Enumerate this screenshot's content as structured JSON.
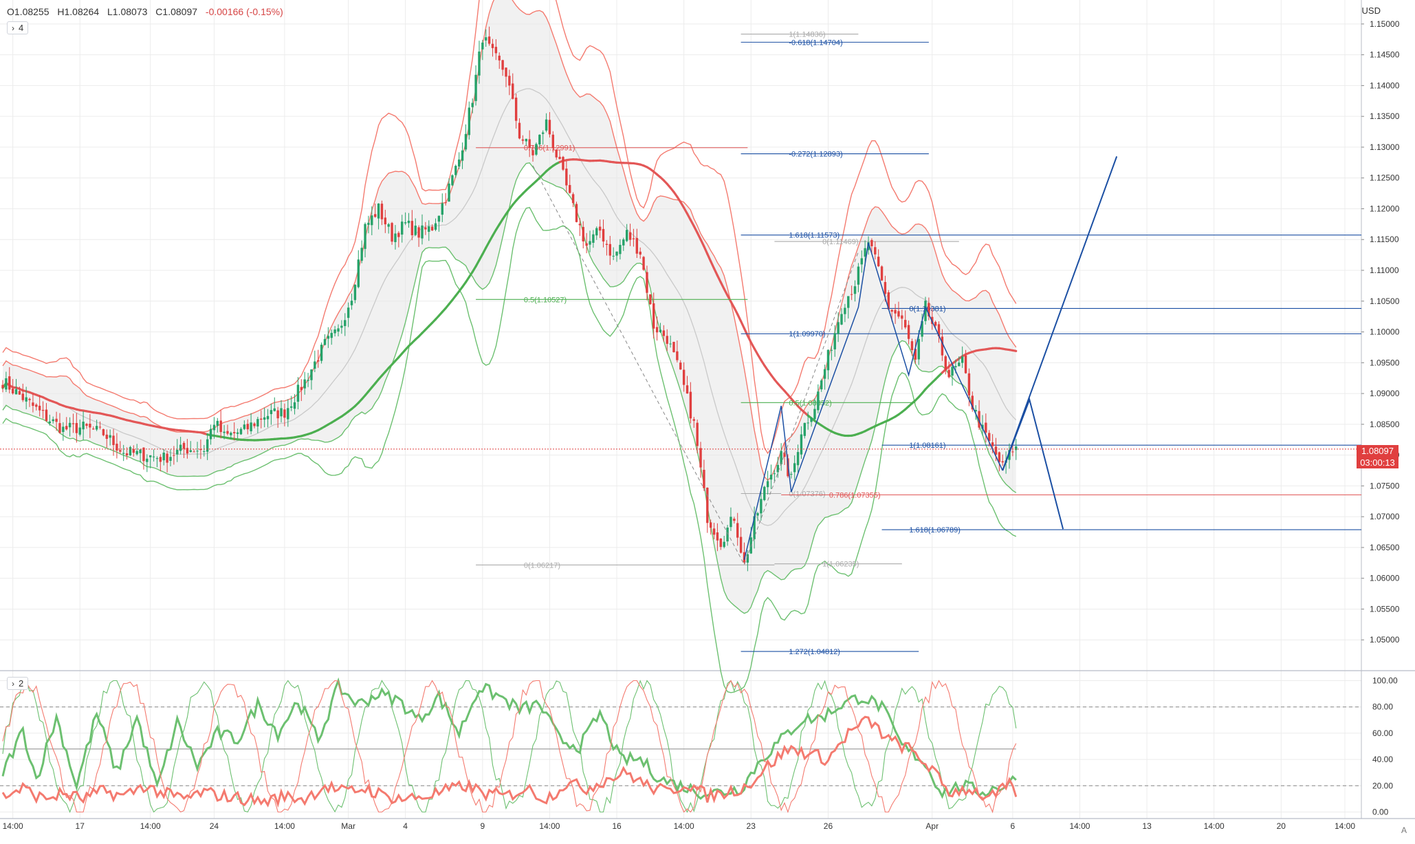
{
  "legend": {
    "open": "O1.08255",
    "high": "H1.08264",
    "low": "L1.08073",
    "close": "C1.08097",
    "change": "-0.00166 (-0.15%)"
  },
  "main_pane_toggle": "4",
  "osc_pane_toggle": "2",
  "currency": "USD",
  "last_price": "1.08097",
  "countdown": "03:00:13",
  "colors": {
    "up": "#26a269",
    "down": "#e03f3f",
    "upper_band": "#f47a6f",
    "lower_band": "#6cc070",
    "ma": "#e35757",
    "fib_blue": "#1b4fa3",
    "fib_red": "#e05050",
    "fib_green": "#4caf50",
    "grid": "#ececec"
  },
  "chart_data": [
    {
      "type": "candlestick",
      "symbol_unit": "USD",
      "ylim": [
        1.045,
        1.153
      ],
      "y_ticks": [
        "1.15000",
        "1.14500",
        "1.14000",
        "1.13500",
        "1.13000",
        "1.12500",
        "1.12000",
        "1.11500",
        "1.11000",
        "1.10500",
        "1.10000",
        "1.09500",
        "1.09000",
        "1.08500",
        "1.08000",
        "1.07500",
        "1.07000",
        "1.06500",
        "1.06000",
        "1.05500",
        "1.05000"
      ],
      "x_ticks": [
        {
          "label": "14:00",
          "bar": 3
        },
        {
          "label": "17",
          "bar": 23
        },
        {
          "label": "14:00",
          "bar": 44
        },
        {
          "label": "24",
          "bar": 63
        },
        {
          "label": "14:00",
          "bar": 84
        },
        {
          "label": "Mar",
          "bar": 103
        },
        {
          "label": "4",
          "bar": 120
        },
        {
          "label": "9",
          "bar": 143
        },
        {
          "label": "14:00",
          "bar": 163
        },
        {
          "label": "16",
          "bar": 183
        },
        {
          "label": "14:00",
          "bar": 203
        },
        {
          "label": "23",
          "bar": 223
        },
        {
          "label": "26",
          "bar": 246
        },
        {
          "label": "Apr",
          "bar": 277
        },
        {
          "label": "6",
          "bar": 301
        },
        {
          "label": "14:00",
          "bar": 321
        },
        {
          "label": "13",
          "bar": 341
        },
        {
          "label": "14:00",
          "bar": 361
        },
        {
          "label": "20",
          "bar": 381
        },
        {
          "label": "14:00",
          "bar": 400
        }
      ],
      "anchors": [
        [
          0,
          1.092
        ],
        [
          6,
          1.0893
        ],
        [
          12,
          1.0865
        ],
        [
          18,
          1.0842
        ],
        [
          24,
          1.0845
        ],
        [
          30,
          1.0835
        ],
        [
          36,
          1.0805
        ],
        [
          42,
          1.08
        ],
        [
          48,
          1.0795
        ],
        [
          54,
          1.081
        ],
        [
          60,
          1.081
        ],
        [
          63,
          1.0855
        ],
        [
          66,
          1.083
        ],
        [
          72,
          1.084
        ],
        [
          78,
          1.0865
        ],
        [
          84,
          1.087
        ],
        [
          90,
          1.092
        ],
        [
          96,
          1.098
        ],
        [
          100,
          1.1
        ],
        [
          104,
          1.106
        ],
        [
          108,
          1.117
        ],
        [
          112,
          1.12
        ],
        [
          116,
          1.1155
        ],
        [
          120,
          1.1175
        ],
        [
          124,
          1.116
        ],
        [
          128,
          1.117
        ],
        [
          132,
          1.122
        ],
        [
          136,
          1.128
        ],
        [
          140,
          1.138
        ],
        [
          143,
          1.148
        ],
        [
          146,
          1.145
        ],
        [
          150,
          1.142
        ],
        [
          154,
          1.132
        ],
        [
          158,
          1.129
        ],
        [
          162,
          1.134
        ],
        [
          166,
          1.127
        ],
        [
          170,
          1.12
        ],
        [
          174,
          1.114
        ],
        [
          178,
          1.1165
        ],
        [
          182,
          1.112
        ],
        [
          186,
          1.116
        ],
        [
          190,
          1.113
        ],
        [
          194,
          1.101
        ],
        [
          198,
          1.099
        ],
        [
          202,
          1.093
        ],
        [
          206,
          1.085
        ],
        [
          210,
          1.07
        ],
        [
          214,
          1.066
        ],
        [
          218,
          1.07
        ],
        [
          221,
          1.0622
        ],
        [
          224,
          1.069
        ],
        [
          228,
          1.076
        ],
        [
          232,
          1.08
        ],
        [
          235,
          1.076
        ],
        [
          238,
          1.084
        ],
        [
          242,
          1.088
        ],
        [
          246,
          1.096
        ],
        [
          250,
          1.104
        ],
        [
          254,
          1.108
        ],
        [
          258,
          1.1147
        ],
        [
          261,
          1.11
        ],
        [
          264,
          1.104
        ],
        [
          268,
          1.102
        ],
        [
          272,
          1.095
        ],
        [
          275,
          1.104
        ],
        [
          278,
          1.1
        ],
        [
          282,
          1.093
        ],
        [
          286,
          1.095
        ],
        [
          289,
          1.088
        ],
        [
          292,
          1.084
        ],
        [
          296,
          1.08
        ],
        [
          298,
          1.078
        ],
        [
          301,
          1.081
        ],
        [
          302,
          1.081
        ]
      ],
      "series": [
        {
          "name": "price",
          "color": "#e03f3f"
        }
      ],
      "fib_levels": [
        {
          "text": "1(1.14836)",
          "color": "#aaaaaa",
          "price": 1.14836,
          "bar_from": 220,
          "bar_to": 255
        },
        {
          "text": "-0.618(1.14704)",
          "color": "#1b4fa3",
          "price": 1.14704,
          "bar_from": 220,
          "bar_to": 276
        },
        {
          "text": "0.786(1.12991)",
          "color": "#e05050",
          "price": 1.12991,
          "bar_from": 141,
          "bar_to": 222
        },
        {
          "text": "-0.272(1.12893)",
          "color": "#1b4fa3",
          "price": 1.12893,
          "bar_from": 220,
          "bar_to": 276
        },
        {
          "text": "1.618(1.11573)",
          "color": "#1b4fa3",
          "price": 1.11573,
          "bar_from": 220,
          "bar_to": 418
        },
        {
          "text": "0(1.11469)",
          "color": "#aaaaaa",
          "price": 1.11469,
          "bar_from": 230,
          "bar_to": 285
        },
        {
          "text": "0.5(1.10527)",
          "color": "#4caf50",
          "price": 1.10527,
          "bar_from": 141,
          "bar_to": 222
        },
        {
          "text": "0(1.10381)",
          "color": "#1b4fa3",
          "price": 1.10381,
          "bar_from": 262,
          "bar_to": 418
        },
        {
          "text": "1(1.09970)",
          "color": "#1b4fa3",
          "price": 1.0997,
          "bar_from": 220,
          "bar_to": 418
        },
        {
          "text": "0.5(1.08852)",
          "color": "#4caf50",
          "price": 1.08852,
          "bar_from": 220,
          "bar_to": 272
        },
        {
          "text": "1(1.08161)",
          "color": "#1b4fa3",
          "price": 1.08161,
          "bar_from": 262,
          "bar_to": 418
        },
        {
          "text": "0(1.07376)",
          "color": "#aaaaaa",
          "price": 1.07376,
          "bar_from": 220,
          "bar_to": 232
        },
        {
          "text": "0.786(1.07355)",
          "color": "#e05050",
          "price": 1.07355,
          "bar_from": 232,
          "bar_to": 418
        },
        {
          "text": "1.618(1.06789)",
          "color": "#1b4fa3",
          "price": 1.06789,
          "bar_from": 262,
          "bar_to": 418
        },
        {
          "text": "0(1.06217)",
          "color": "#aaaaaa",
          "price": 1.06217,
          "bar_from": 141,
          "bar_to": 230
        },
        {
          "text": "1(1.06235)",
          "color": "#aaaaaa",
          "price": 1.06235,
          "bar_from": 230,
          "bar_to": 268
        },
        {
          "text": "1.272(1.04812)",
          "color": "#1b4fa3",
          "price": 1.04812,
          "bar_from": 220,
          "bar_to": 273
        }
      ],
      "projection_lines": [
        {
          "color": "#1b4fa3",
          "points": [
            [
              298,
              1.0775
            ],
            [
              306,
              1.089
            ],
            [
              316,
              1.068
            ]
          ]
        },
        {
          "color": "#1b4fa3",
          "points": [
            [
              298,
              1.0775
            ],
            [
              332,
              1.1285
            ]
          ]
        }
      ],
      "pattern_lines": [
        {
          "color": "#1b4fa3",
          "points": [
            [
              221,
              1.063
            ],
            [
              232,
              1.088
            ],
            [
              235,
              1.074
            ],
            [
              255,
              1.104
            ],
            [
              258,
              1.1145
            ],
            [
              270,
              1.093
            ],
            [
              275,
              1.104
            ],
            [
              298,
              1.0775
            ]
          ]
        },
        {
          "color": "#888888",
          "dashed": true,
          "points": [
            [
              158,
              1.127
            ],
            [
              221,
              1.0622
            ],
            [
              255,
              1.113
            ]
          ]
        }
      ]
    },
    {
      "type": "line",
      "name": "oscillator",
      "ylim": [
        -5,
        105
      ],
      "y_ticks": [
        "100.00",
        "80.00",
        "60.00",
        "40.00",
        "20.00",
        "0.00"
      ],
      "levels": [
        80,
        48,
        20
      ],
      "series": [
        {
          "name": "",
          "color": "#6cc070",
          "anchors": [
            [
              0,
              30
            ],
            [
              6,
              62
            ],
            [
              10,
              25
            ],
            [
              16,
              72
            ],
            [
              22,
              20
            ],
            [
              28,
              75
            ],
            [
              34,
              30
            ],
            [
              40,
              72
            ],
            [
              46,
              18
            ],
            [
              52,
              68
            ],
            [
              58,
              35
            ],
            [
              64,
              60
            ],
            [
              70,
              55
            ],
            [
              76,
              82
            ],
            [
              82,
              60
            ],
            [
              88,
              85
            ],
            [
              94,
              55
            ],
            [
              100,
              95
            ],
            [
              106,
              82
            ],
            [
              112,
              90
            ],
            [
              118,
              85
            ],
            [
              124,
              70
            ],
            [
              130,
              88
            ],
            [
              136,
              60
            ],
            [
              142,
              95
            ],
            [
              148,
              88
            ],
            [
              154,
              78
            ],
            [
              160,
              82
            ],
            [
              166,
              55
            ],
            [
              172,
              50
            ],
            [
              178,
              75
            ],
            [
              184,
              40
            ],
            [
              190,
              40
            ],
            [
              196,
              25
            ],
            [
              202,
              20
            ],
            [
              208,
              15
            ],
            [
              214,
              15
            ],
            [
              220,
              18
            ],
            [
              226,
              40
            ],
            [
              232,
              55
            ],
            [
              238,
              70
            ],
            [
              244,
              72
            ],
            [
              250,
              82
            ],
            [
              256,
              88
            ],
            [
              262,
              80
            ],
            [
              268,
              50
            ],
            [
              274,
              40
            ],
            [
              280,
              15
            ],
            [
              286,
              20
            ],
            [
              292,
              15
            ],
            [
              298,
              20
            ],
            [
              302,
              25
            ]
          ]
        },
        {
          "name": "",
          "color": "#f47a6f",
          "anchors": [
            [
              0,
              12
            ],
            [
              6,
              18
            ],
            [
              12,
              10
            ],
            [
              18,
              14
            ],
            [
              24,
              10
            ],
            [
              30,
              16
            ],
            [
              36,
              12
            ],
            [
              42,
              20
            ],
            [
              48,
              14
            ],
            [
              54,
              10
            ],
            [
              60,
              15
            ],
            [
              66,
              12
            ],
            [
              72,
              10
            ],
            [
              78,
              8
            ],
            [
              84,
              12
            ],
            [
              90,
              10
            ],
            [
              96,
              20
            ],
            [
              102,
              15
            ],
            [
              108,
              18
            ],
            [
              114,
              12
            ],
            [
              120,
              10
            ],
            [
              126,
              12
            ],
            [
              132,
              16
            ],
            [
              138,
              20
            ],
            [
              144,
              14
            ],
            [
              150,
              12
            ],
            [
              156,
              18
            ],
            [
              162,
              10
            ],
            [
              168,
              22
            ],
            [
              174,
              18
            ],
            [
              180,
              25
            ],
            [
              186,
              30
            ],
            [
              192,
              20
            ],
            [
              198,
              15
            ],
            [
              204,
              22
            ],
            [
              210,
              12
            ],
            [
              216,
              15
            ],
            [
              222,
              20
            ],
            [
              228,
              35
            ],
            [
              234,
              48
            ],
            [
              240,
              45
            ],
            [
              246,
              40
            ],
            [
              252,
              60
            ],
            [
              258,
              70
            ],
            [
              264,
              55
            ],
            [
              270,
              48
            ],
            [
              276,
              35
            ],
            [
              282,
              15
            ],
            [
              288,
              18
            ],
            [
              294,
              10
            ],
            [
              300,
              20
            ],
            [
              302,
              15
            ]
          ]
        }
      ]
    }
  ]
}
